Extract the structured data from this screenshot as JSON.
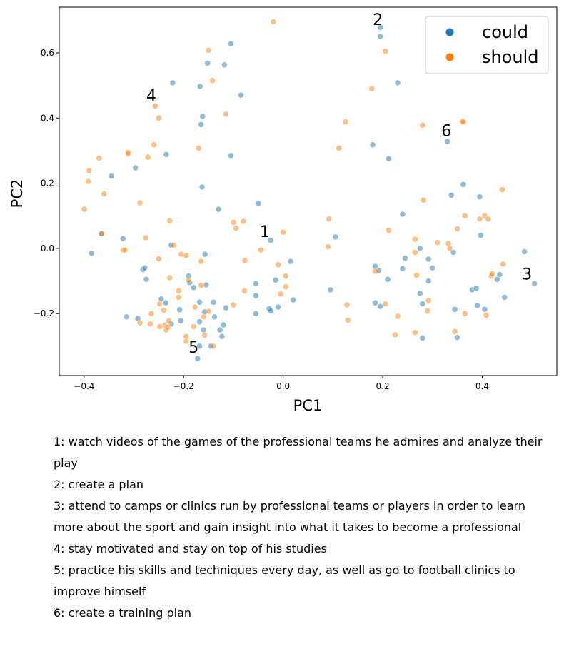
{
  "chart_data": {
    "type": "scatter",
    "xlabel": "PC1",
    "ylabel": "PC2",
    "xlim": [
      -0.45,
      0.55
    ],
    "ylim": [
      -0.39,
      0.74
    ],
    "xticks": [
      -0.4,
      -0.2,
      0.0,
      0.2,
      0.4
    ],
    "xtick_labels": [
      "−0.4",
      "−0.2",
      "0.0",
      "0.2",
      "0.4"
    ],
    "yticks": [
      -0.2,
      0.0,
      0.2,
      0.4,
      0.6
    ],
    "ytick_labels": [
      "−0.2",
      "0.0",
      "0.2",
      "0.4",
      "0.6"
    ],
    "grid": false,
    "legend_position": "top-right",
    "series": [
      {
        "name": "could",
        "color": "#1f77b4",
        "points": [
          [
            -0.385,
            -0.015
          ],
          [
            -0.345,
            0.222
          ],
          [
            -0.365,
            0.045
          ],
          [
            -0.322,
            0.03
          ],
          [
            -0.315,
            -0.21
          ],
          [
            -0.297,
            0.247
          ],
          [
            -0.292,
            -0.215
          ],
          [
            -0.282,
            -0.065
          ],
          [
            -0.278,
            -0.06
          ],
          [
            -0.275,
            -0.095
          ],
          [
            -0.235,
            0.288
          ],
          [
            -0.236,
            -0.167
          ],
          [
            -0.245,
            -0.155
          ],
          [
            -0.225,
            -0.232
          ],
          [
            -0.225,
            0.01
          ],
          [
            -0.222,
            0.508
          ],
          [
            -0.208,
            -0.188
          ],
          [
            -0.206,
            -0.222
          ],
          [
            -0.19,
            -0.085
          ],
          [
            -0.188,
            -0.105
          ],
          [
            -0.18,
            -0.12
          ],
          [
            -0.172,
            -0.338
          ],
          [
            -0.168,
            -0.3
          ],
          [
            -0.168,
            -0.165
          ],
          [
            -0.168,
            -0.225
          ],
          [
            -0.167,
            0.497
          ],
          [
            -0.165,
            0.38
          ],
          [
            -0.163,
            0.188
          ],
          [
            -0.162,
            0.405
          ],
          [
            -0.16,
            -0.25
          ],
          [
            -0.158,
            -0.195
          ],
          [
            -0.157,
            -0.018
          ],
          [
            -0.155,
            -0.112
          ],
          [
            -0.152,
            0.568
          ],
          [
            -0.145,
            -0.3
          ],
          [
            -0.14,
            -0.165
          ],
          [
            -0.138,
            -0.21
          ],
          [
            -0.13,
            0.12
          ],
          [
            -0.127,
            -0.25
          ],
          [
            -0.123,
            -0.27
          ],
          [
            -0.12,
            -0.235
          ],
          [
            -0.118,
            0.563
          ],
          [
            -0.115,
            -0.182
          ],
          [
            -0.105,
            0.285
          ],
          [
            -0.105,
            0.628
          ],
          [
            -0.085,
            0.47
          ],
          [
            -0.055,
            -0.2
          ],
          [
            -0.055,
            -0.145
          ],
          [
            -0.055,
            -0.108
          ],
          [
            -0.05,
            0.138
          ],
          [
            -0.028,
            -0.185
          ],
          [
            -0.025,
            -0.192
          ],
          [
            -0.025,
            0.025
          ],
          [
            -0.015,
            -0.097
          ],
          [
            -0.01,
            -0.18
          ],
          [
            0.015,
            -0.04
          ],
          [
            0.02,
            -0.158
          ],
          [
            0.095,
            -0.127
          ],
          [
            0.105,
            0.035
          ],
          [
            0.18,
            0.318
          ],
          [
            0.185,
            -0.167
          ],
          [
            0.185,
            -0.055
          ],
          [
            0.192,
            -0.068
          ],
          [
            0.195,
            0.65
          ],
          [
            0.195,
            0.678
          ],
          [
            0.195,
            -0.178
          ],
          [
            0.21,
            -0.095
          ],
          [
            0.212,
            0.275
          ],
          [
            0.23,
            0.508
          ],
          [
            0.24,
            0.105
          ],
          [
            0.24,
            -0.062
          ],
          [
            0.245,
            -0.03
          ],
          [
            0.275,
            -0.138
          ],
          [
            0.275,
            0.0
          ],
          [
            0.28,
            -0.17
          ],
          [
            0.28,
            -0.275
          ],
          [
            0.292,
            -0.1
          ],
          [
            0.292,
            -0.033
          ],
          [
            0.3,
            -0.06
          ],
          [
            0.33,
            0.328
          ],
          [
            0.338,
            0.163
          ],
          [
            0.342,
            -0.012
          ],
          [
            0.345,
            -0.187
          ],
          [
            0.35,
            -0.273
          ],
          [
            0.362,
            0.196
          ],
          [
            0.38,
            -0.127
          ],
          [
            0.388,
            -0.122
          ],
          [
            0.39,
            -0.175
          ],
          [
            0.395,
            0.158
          ],
          [
            0.397,
            0.04
          ],
          [
            0.405,
            -0.187
          ],
          [
            0.43,
            -0.095
          ],
          [
            0.435,
            -0.08
          ],
          [
            0.445,
            -0.15
          ],
          [
            0.485,
            -0.01
          ],
          [
            0.505,
            -0.108
          ]
        ]
      },
      {
        "name": "should",
        "color": "#ff7f0e",
        "points": [
          [
            -0.4,
            0.12
          ],
          [
            -0.392,
            0.205
          ],
          [
            -0.39,
            0.238
          ],
          [
            -0.37,
            0.277
          ],
          [
            -0.36,
            0.167
          ],
          [
            -0.365,
            0.045
          ],
          [
            -0.322,
            -0.005
          ],
          [
            -0.318,
            -0.005
          ],
          [
            -0.312,
            0.295
          ],
          [
            -0.312,
            0.29
          ],
          [
            -0.288,
            0.14
          ],
          [
            -0.288,
            -0.228
          ],
          [
            -0.276,
            0.033
          ],
          [
            -0.272,
            0.28
          ],
          [
            -0.267,
            -0.232
          ],
          [
            -0.265,
            -0.2
          ],
          [
            -0.26,
            0.318
          ],
          [
            -0.257,
            0.437
          ],
          [
            -0.25,
            0.4
          ],
          [
            -0.25,
            -0.032
          ],
          [
            -0.248,
            -0.17
          ],
          [
            -0.248,
            -0.24
          ],
          [
            -0.24,
            -0.19
          ],
          [
            -0.238,
            -0.235
          ],
          [
            -0.235,
            -0.25
          ],
          [
            -0.232,
            -0.242
          ],
          [
            -0.23,
            -0.222
          ],
          [
            -0.228,
            0.085
          ],
          [
            -0.228,
            -0.09
          ],
          [
            -0.22,
            0.01
          ],
          [
            -0.21,
            -0.15
          ],
          [
            -0.21,
            -0.13
          ],
          [
            -0.205,
            -0.018
          ],
          [
            -0.195,
            -0.022
          ],
          [
            -0.195,
            -0.27
          ],
          [
            -0.195,
            -0.285
          ],
          [
            -0.19,
            -0.098
          ],
          [
            -0.18,
            -0.24
          ],
          [
            -0.177,
            -0.18
          ],
          [
            -0.17,
            0.308
          ],
          [
            -0.165,
            -0.04
          ],
          [
            -0.165,
            -0.113
          ],
          [
            -0.16,
            -0.21
          ],
          [
            -0.158,
            -0.266
          ],
          [
            -0.15,
            0.608
          ],
          [
            -0.15,
            -0.193
          ],
          [
            -0.142,
            0.515
          ],
          [
            -0.14,
            -0.3
          ],
          [
            -0.115,
            0.412
          ],
          [
            -0.1,
            0.08
          ],
          [
            -0.1,
            -0.173
          ],
          [
            -0.095,
            0.062
          ],
          [
            -0.08,
            0.083
          ],
          [
            -0.077,
            -0.037
          ],
          [
            -0.078,
            -0.13
          ],
          [
            -0.045,
            -0.005
          ],
          [
            -0.02,
            0.695
          ],
          [
            0.0,
            0.05
          ],
          [
            -0.01,
            -0.05
          ],
          [
            -0.005,
            -0.14
          ],
          [
            0.005,
            -0.085
          ],
          [
            0.005,
            -0.118
          ],
          [
            0.09,
            0.005
          ],
          [
            0.092,
            0.09
          ],
          [
            0.112,
            0.308
          ],
          [
            0.125,
            0.388
          ],
          [
            0.128,
            -0.173
          ],
          [
            0.13,
            -0.22
          ],
          [
            0.178,
            0.49
          ],
          [
            0.185,
            -0.07
          ],
          [
            0.205,
            -0.17
          ],
          [
            0.205,
            0.605
          ],
          [
            0.212,
            0.055
          ],
          [
            0.225,
            -0.265
          ],
          [
            0.23,
            -0.208
          ],
          [
            0.265,
            0.028
          ],
          [
            0.265,
            -0.012
          ],
          [
            0.265,
            -0.258
          ],
          [
            0.268,
            -0.082
          ],
          [
            0.28,
            0.378
          ],
          [
            0.282,
            0.148
          ],
          [
            0.29,
            -0.192
          ],
          [
            0.292,
            -0.16
          ],
          [
            0.31,
            0.018
          ],
          [
            0.332,
            0.015
          ],
          [
            0.335,
            0.0
          ],
          [
            0.345,
            -0.255
          ],
          [
            0.35,
            0.06
          ],
          [
            0.36,
            0.39
          ],
          [
            0.362,
            0.388
          ],
          [
            0.365,
            0.1
          ],
          [
            0.365,
            -0.2
          ],
          [
            0.395,
            0.09
          ],
          [
            0.405,
            0.1
          ],
          [
            0.408,
            -0.205
          ],
          [
            0.412,
            0.09
          ],
          [
            0.418,
            -0.085
          ],
          [
            0.42,
            -0.078
          ],
          [
            0.44,
            0.18
          ],
          [
            0.442,
            -0.048
          ]
        ]
      }
    ],
    "annotations": [
      {
        "label": "1",
        "x": -0.047,
        "y": 0.035
      },
      {
        "label": "2",
        "x": 0.18,
        "y": 0.685
      },
      {
        "label": "3",
        "x": 0.48,
        "y": -0.095
      },
      {
        "label": "4",
        "x": -0.275,
        "y": 0.452
      },
      {
        "label": "5",
        "x": -0.19,
        "y": -0.32
      },
      {
        "label": "6",
        "x": 0.318,
        "y": 0.345
      }
    ]
  },
  "notes": [
    "1: watch videos of the games of the professional teams he admires and analyze their play",
    "2: create a plan",
    "3: attend to camps or clinics run by professional teams or players in order to learn more about the sport and gain insight into what it takes to become a professional",
    "4: stay motivated and stay on top of his studies",
    "5: practice his skills and techniques every day, as well as go to football clinics to improve himself",
    "6: create a training plan"
  ]
}
